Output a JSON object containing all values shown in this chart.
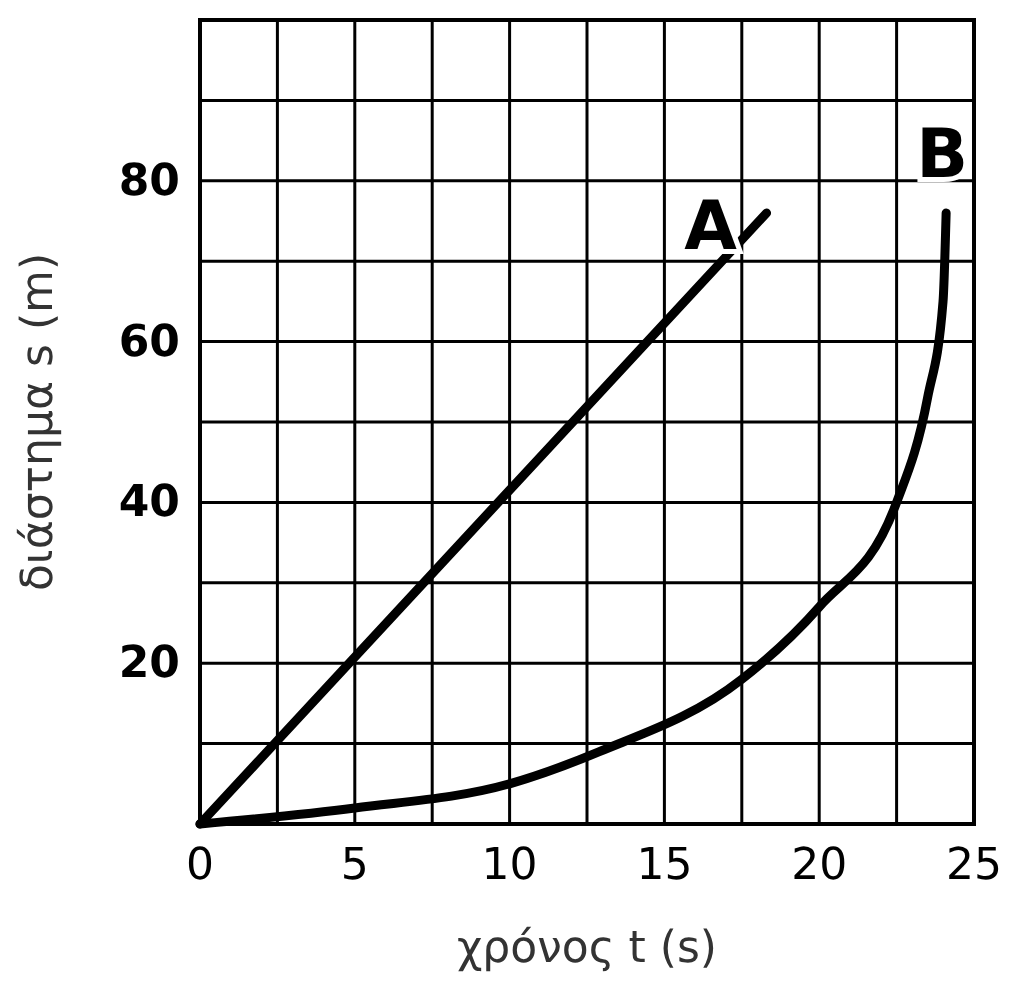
{
  "chart_data": {
    "type": "line",
    "xlabel": "χρόνος t (s)",
    "ylabel": "διάστημα s (m)",
    "xlim": [
      0,
      25
    ],
    "ylim": [
      0,
      100
    ],
    "xticks": [
      0,
      {
        "value": 2.5,
        "label": null
      },
      5,
      {
        "value": 7.5,
        "label": null
      },
      10,
      {
        "value": 12.5,
        "label": null
      },
      15,
      {
        "value": 17.5,
        "label": null
      },
      20,
      {
        "value": 22.5,
        "label": null
      },
      25
    ],
    "yticks": [
      {
        "value": 0,
        "label": null
      },
      {
        "value": 10,
        "label": null
      },
      20,
      {
        "value": 30,
        "label": null
      },
      40,
      {
        "value": 50,
        "label": null
      },
      60,
      {
        "value": 70,
        "label": null
      },
      80,
      {
        "value": 90,
        "label": null
      },
      {
        "value": 100,
        "label": null
      }
    ],
    "grid": true,
    "marker": "none",
    "line_style": "solid",
    "series": [
      {
        "name": "A",
        "color": "#000000",
        "x": [
          0,
          18.3
        ],
        "values": [
          0,
          76
        ]
      },
      {
        "name": "B",
        "color": "#000000",
        "x": [
          0,
          5,
          10,
          12.9,
          17.5,
          20,
          22.5,
          23.5,
          24,
          24.1
        ],
        "values": [
          0,
          2,
          5,
          9,
          18,
          27,
          40,
          53,
          65,
          76
        ]
      }
    ]
  }
}
